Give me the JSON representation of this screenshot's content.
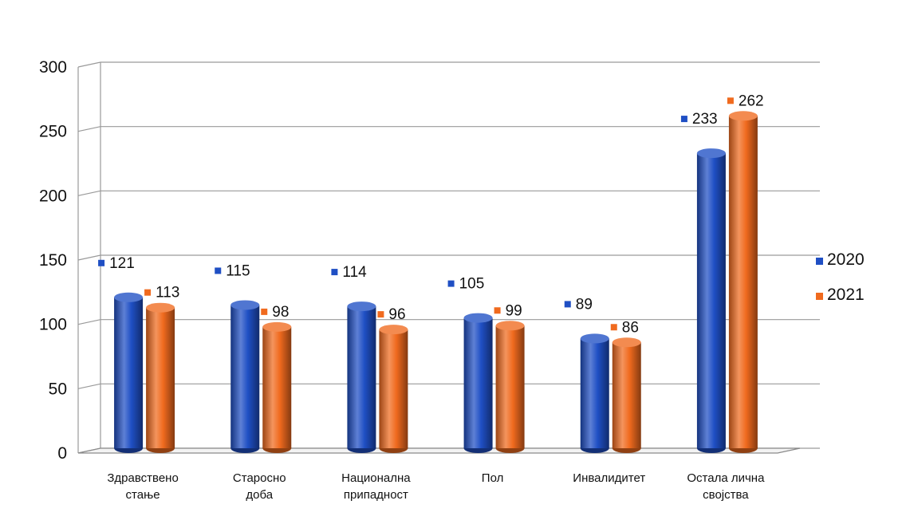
{
  "chart_data": {
    "type": "bar",
    "title": "",
    "xlabel": "",
    "ylabel": "",
    "ylim": [
      0,
      300
    ],
    "yticks": [
      0,
      50,
      100,
      150,
      200,
      250,
      300
    ],
    "grid": true,
    "legend_position": "right",
    "categories": [
      [
        "Здравствено",
        "стање"
      ],
      [
        "Старосно",
        "доба"
      ],
      [
        "Национална",
        "припадност"
      ],
      [
        "Пол"
      ],
      [
        "Инвалидитет"
      ],
      [
        "Остала лична",
        "својства"
      ]
    ],
    "series": [
      {
        "name": "2020",
        "color": "#1f4fc4",
        "values": [
          121,
          115,
          114,
          105,
          89,
          233
        ]
      },
      {
        "name": "2021",
        "color": "#f06a1e",
        "values": [
          113,
          98,
          96,
          99,
          86,
          262
        ]
      }
    ]
  }
}
